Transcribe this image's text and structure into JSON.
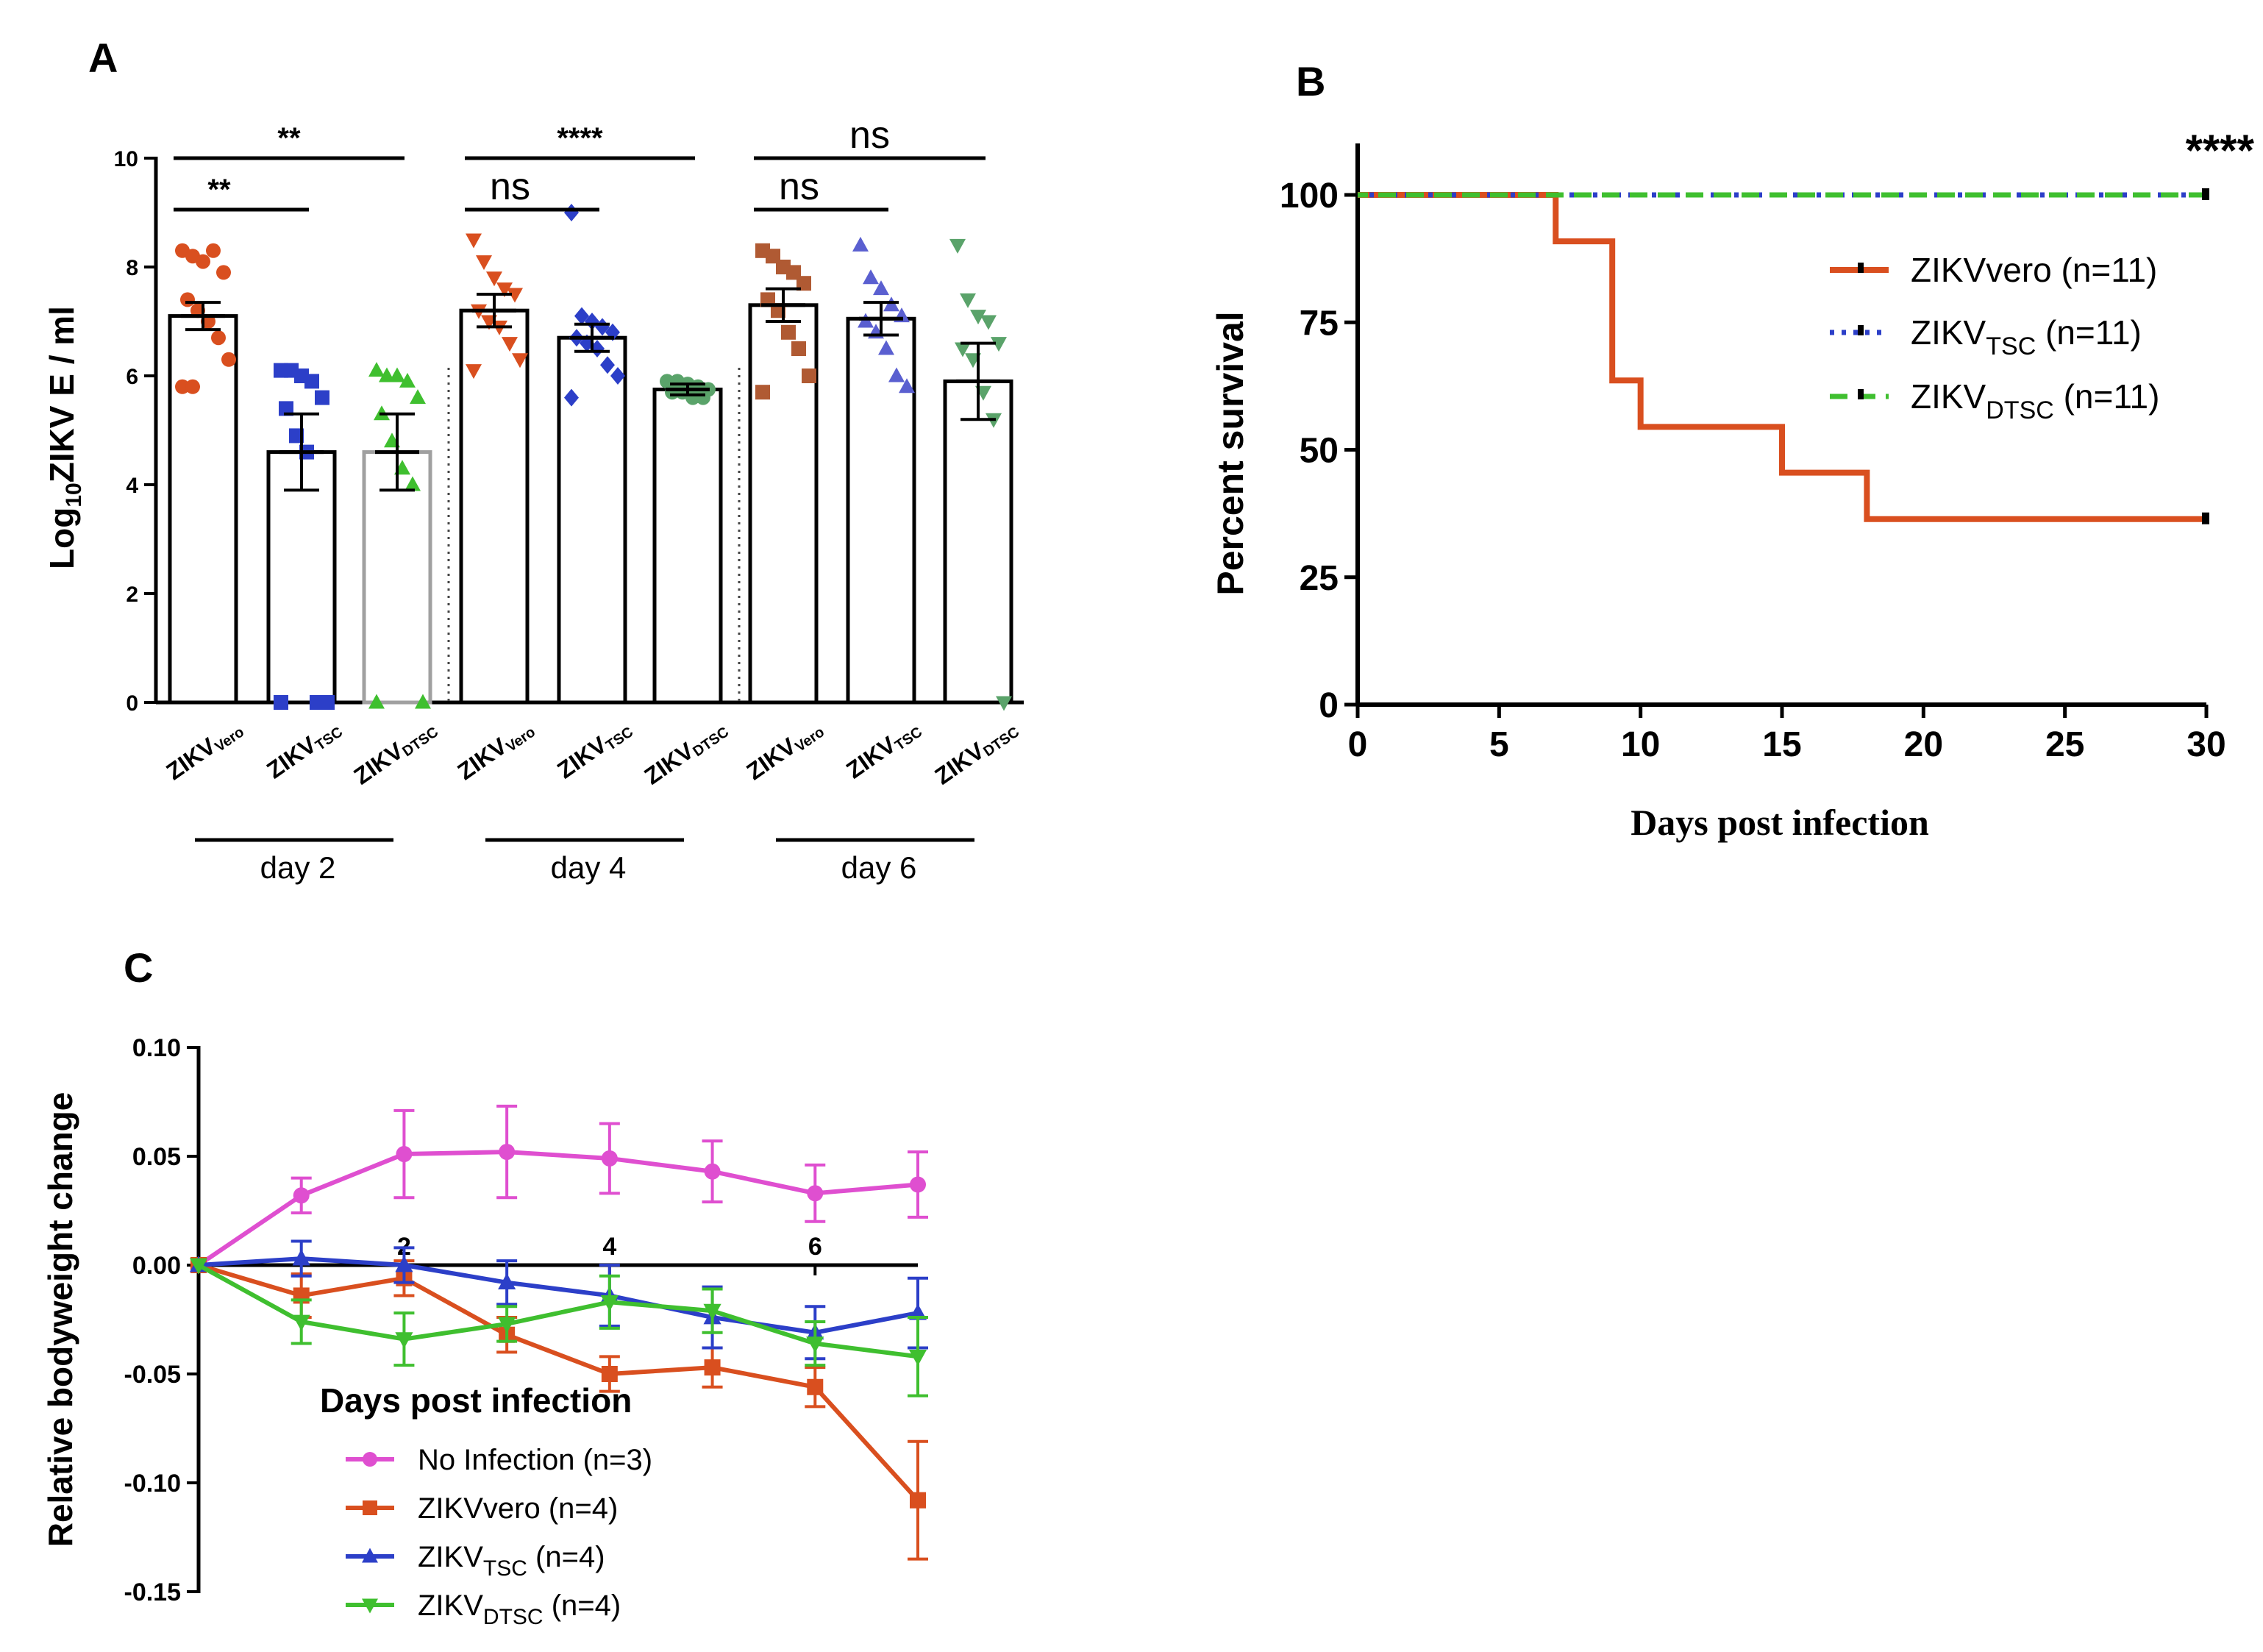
{
  "colors": {
    "orange": "#d94f1f",
    "blue": "#2c3fc8",
    "green": "#3fbf2f",
    "pink": "#df4fd0",
    "brown": "#b05a33",
    "lightblue": "#5a5fd0",
    "teal": "#5aa36a",
    "grey": "#a0a0a0"
  },
  "chart_data": [
    {
      "id": "A",
      "panel_label": "A",
      "type": "bar",
      "ylabel": "Log",
      "ylabel_sub": "10",
      "ylabel_rest": "ZIKV E / ml",
      "ylim": [
        0,
        10
      ],
      "yticks": [
        "0",
        "2",
        "4",
        "6",
        "8",
        "10"
      ],
      "categories": [
        {
          "main": "ZIKV",
          "sub": "Vero"
        },
        {
          "main": "ZIKV",
          "sub": "TSC"
        },
        {
          "main": "ZIKV",
          "sub": "DTSC"
        },
        {
          "main": "ZIKV",
          "sub": "Vero"
        },
        {
          "main": "ZIKV",
          "sub": "TSC"
        },
        {
          "main": "ZIKV",
          "sub": "DTSC"
        },
        {
          "main": "ZIKV",
          "sub": "Vero"
        },
        {
          "main": "ZIKV",
          "sub": "TSC"
        },
        {
          "main": "ZIKV",
          "sub": "DTSC"
        }
      ],
      "groups": [
        "day 2",
        "day 4",
        "day 6"
      ],
      "bars": [
        {
          "mean": 7.1,
          "sem": 0.25,
          "color_key": "orange",
          "marker": "circle",
          "points": [
            8.3,
            8.2,
            8.1,
            8.3,
            7.9,
            7.4,
            7.2,
            7.0,
            6.7,
            6.3,
            5.8,
            5.8
          ]
        },
        {
          "mean": 4.6,
          "sem": 0.7,
          "color_key": "blue",
          "marker": "square",
          "points": [
            6.1,
            6.1,
            6.0,
            5.9,
            5.6,
            5.4,
            4.9,
            4.6,
            0.0,
            0.0,
            0.0
          ]
        },
        {
          "mean": 4.6,
          "sem": 0.7,
          "color_key": "green",
          "marker": "triangle",
          "bar_stroke_key": "grey",
          "points": [
            6.1,
            6.0,
            6.0,
            5.9,
            5.6,
            5.3,
            4.8,
            4.3,
            4.0,
            0.0,
            0.0
          ]
        },
        {
          "mean": 7.2,
          "sem": 0.3,
          "color_key": "orange",
          "marker": "triangle-down",
          "points": [
            8.5,
            8.1,
            7.8,
            7.6,
            7.5,
            7.2,
            7.0,
            6.9,
            6.6,
            6.3,
            6.1
          ]
        },
        {
          "mean": 6.7,
          "sem": 0.25,
          "color_key": "blue",
          "marker": "diamond",
          "points": [
            9.0,
            7.1,
            7.0,
            6.9,
            6.8,
            6.7,
            6.6,
            6.5,
            6.2,
            6.0,
            5.6
          ]
        },
        {
          "mean": 5.75,
          "sem": 0.1,
          "color_key": "teal",
          "marker": "circle",
          "points": [
            5.9,
            5.9,
            5.85,
            5.8,
            5.75,
            5.7,
            5.7,
            5.6,
            5.6
          ]
        },
        {
          "mean": 7.3,
          "sem": 0.3,
          "color_key": "brown",
          "marker": "square",
          "points": [
            8.3,
            8.2,
            8.0,
            7.9,
            7.7,
            7.4,
            7.2,
            6.8,
            6.5,
            6.0,
            5.7
          ]
        },
        {
          "mean": 7.05,
          "sem": 0.3,
          "color_key": "lightblue",
          "marker": "triangle",
          "points": [
            8.4,
            7.8,
            7.6,
            7.3,
            7.1,
            7.0,
            6.8,
            6.5,
            6.0,
            5.8
          ]
        },
        {
          "mean": 5.9,
          "sem": 0.7,
          "color_key": "teal",
          "marker": "triangle-down",
          "points": [
            8.4,
            7.4,
            7.1,
            7.0,
            6.6,
            6.5,
            6.3,
            5.7,
            5.2,
            0.0
          ]
        }
      ],
      "significance": [
        {
          "from": 0,
          "to": 1,
          "label": "**",
          "y": 9.0
        },
        {
          "from": 0,
          "to": 2,
          "label": "**",
          "y": 10.0
        },
        {
          "from": 3,
          "to": 4,
          "label": "ns",
          "y": 9.0
        },
        {
          "from": 3,
          "to": 5,
          "label": "****",
          "y": 10.0
        },
        {
          "from": 6,
          "to": 7,
          "label": "ns",
          "y": 9.0
        },
        {
          "from": 6,
          "to": 8,
          "label": "ns",
          "y": 10.0
        }
      ]
    },
    {
      "id": "B",
      "panel_label": "B",
      "type": "line",
      "title": "",
      "xlabel": "Days post infection",
      "ylabel": "Percent survival",
      "xlim": [
        0,
        30
      ],
      "ylim": [
        0,
        110
      ],
      "xticks": [
        "0",
        "5",
        "10",
        "15",
        "20",
        "25",
        "30"
      ],
      "yticks": [
        "0",
        "25",
        "50",
        "75",
        "100"
      ],
      "annotation": "****",
      "series": [
        {
          "name": "ZIKVvero (n=11)",
          "legend_main": "ZIKVvero",
          "legend_sub": "",
          "legend_n": "(n=11)",
          "color_key": "orange",
          "style": "solid",
          "steps": [
            [
              0,
              100
            ],
            [
              7,
              100
            ],
            [
              7,
              90.9
            ],
            [
              9,
              90.9
            ],
            [
              9,
              63.6
            ],
            [
              10,
              63.6
            ],
            [
              10,
              54.5
            ],
            [
              15,
              54.5
            ],
            [
              15,
              45.5
            ],
            [
              18,
              45.5
            ],
            [
              18,
              36.4
            ],
            [
              30,
              36.4
            ]
          ]
        },
        {
          "name": "ZIKVTSC (n=11)",
          "legend_main": "ZIKV",
          "legend_sub": "TSC",
          "legend_n": "(n=11)",
          "color_key": "blue",
          "style": "dotted",
          "steps": [
            [
              0,
              100
            ],
            [
              30,
              100
            ]
          ]
        },
        {
          "name": "ZIKVDTSC (n=11)",
          "legend_main": "ZIKV",
          "legend_sub": "DTSC",
          "legend_n": "(n=11)",
          "color_key": "green",
          "style": "dashed",
          "steps": [
            [
              0,
              100
            ],
            [
              30,
              100
            ]
          ]
        }
      ]
    },
    {
      "id": "C",
      "panel_label": "C",
      "type": "line",
      "xlabel": "Days post infection",
      "ylabel": "Relative bodyweight change",
      "xlim": [
        0,
        7
      ],
      "ylim": [
        -0.15,
        0.1
      ],
      "xticks": [
        "2",
        "4",
        "6"
      ],
      "xtick_values": [
        2,
        4,
        6
      ],
      "yticks": [
        "0.10",
        "0.05",
        "0.00",
        "-0.05",
        "-0.10",
        "-0.15"
      ],
      "ytick_values": [
        0.1,
        0.05,
        0.0,
        -0.05,
        -0.1,
        -0.15
      ],
      "series": [
        {
          "name": "No Infection (n=3)",
          "legend_main": "No Infection (n=3)",
          "legend_sub": "",
          "legend_n": "",
          "color_key": "pink",
          "marker": "circle",
          "x": [
            0,
            1,
            2,
            3,
            4,
            5,
            6,
            7
          ],
          "y": [
            0.0,
            0.032,
            0.051,
            0.052,
            0.049,
            0.043,
            0.033,
            0.037
          ],
          "err": [
            0,
            0.008,
            0.02,
            0.021,
            0.016,
            0.014,
            0.013,
            0.015
          ]
        },
        {
          "name": "ZIKVvero (n=4)",
          "legend_main": "ZIKVvero (n=4)",
          "legend_sub": "",
          "legend_n": "",
          "color_key": "orange",
          "marker": "square",
          "x": [
            0,
            1,
            2,
            3,
            4,
            5,
            6,
            7
          ],
          "y": [
            0.0,
            -0.014,
            -0.006,
            -0.032,
            -0.05,
            -0.047,
            -0.056,
            -0.108
          ],
          "err": [
            0,
            0.01,
            0.008,
            0.008,
            0.008,
            0.009,
            0.009,
            0.027
          ]
        },
        {
          "name": "ZIKVTSC (n=4)",
          "legend_main": "ZIKV",
          "legend_sub": "TSC",
          "legend_n": "(n=4)",
          "color_key": "blue",
          "marker": "triangle",
          "x": [
            0,
            1,
            2,
            3,
            4,
            5,
            6,
            7
          ],
          "y": [
            0.0,
            0.003,
            0.0,
            -0.008,
            -0.014,
            -0.024,
            -0.031,
            -0.022
          ],
          "err": [
            0,
            0.008,
            0.008,
            0.01,
            0.014,
            0.014,
            0.012,
            0.016
          ]
        },
        {
          "name": "ZIKVDTSC (n=4)",
          "legend_main": "ZIKV",
          "legend_sub": "DTSC",
          "legend_n": "(n=4)",
          "color_key": "green",
          "marker": "triangle-down",
          "x": [
            0,
            1,
            2,
            3,
            4,
            5,
            6,
            7
          ],
          "y": [
            0.0,
            -0.026,
            -0.034,
            -0.027,
            -0.017,
            -0.021,
            -0.036,
            -0.042
          ],
          "err": [
            0,
            0.01,
            0.012,
            0.008,
            0.012,
            0.01,
            0.01,
            0.018
          ]
        }
      ]
    }
  ]
}
